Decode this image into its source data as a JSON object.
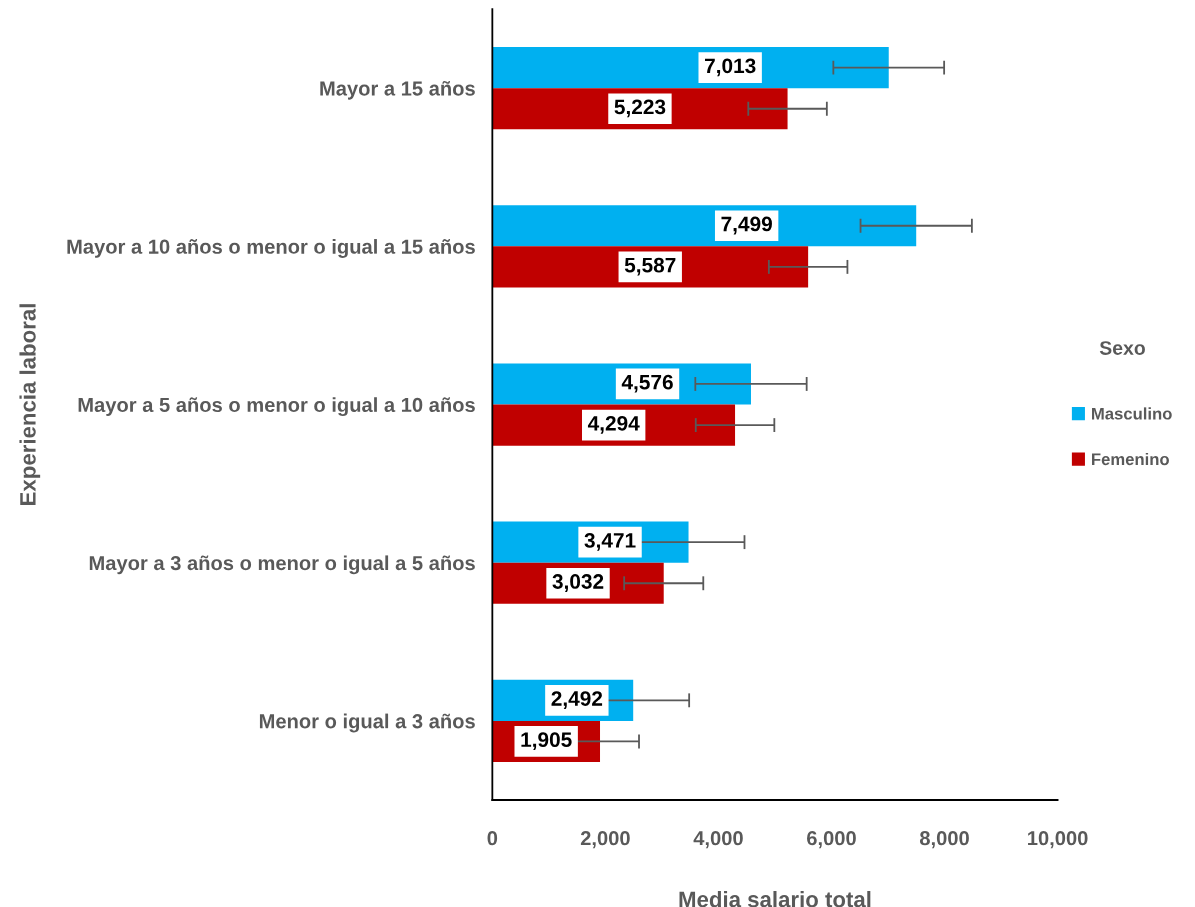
{
  "chart_data": {
    "type": "bar",
    "orientation": "horizontal",
    "xlabel": "Media salario total",
    "ylabel": "Experiencia laboral",
    "legend_title": "Sexo",
    "legend": "right",
    "grid": false,
    "categories": [
      "Mayor a 15 años",
      "Mayor a 10 años o menor o igual a 15 años",
      "Mayor a 5 años o menor o igual a 10 años",
      "Mayor a 3 años o menor o igual a 5 años",
      "Menor o igual a 3 años"
    ],
    "xlim": [
      0,
      10000
    ],
    "xticks": [
      {
        "value": 0,
        "label": "0"
      },
      {
        "value": 2000,
        "label": "2,000"
      },
      {
        "value": 4000,
        "label": "4,000"
      },
      {
        "value": 6000,
        "label": "6,000"
      },
      {
        "value": 8000,
        "label": "8,000"
      },
      {
        "value": 10000,
        "label": "10,000"
      }
    ],
    "series": [
      {
        "name": "Masculino",
        "color": "#00b0f0",
        "values": [
          7013,
          7499,
          4576,
          3471,
          2492
        ],
        "value_labels": [
          "7,013",
          "7,499",
          "4,576",
          "3,471",
          "2,492"
        ],
        "errors": [
          980,
          985,
          985,
          990,
          990
        ]
      },
      {
        "name": "Femenino",
        "color": "#c00000",
        "values": [
          5223,
          5587,
          4294,
          3032,
          1905
        ],
        "value_labels": [
          "5,223",
          "5,587",
          "4,294",
          "3,032",
          "1,905"
        ],
        "errors": [
          695,
          695,
          695,
          700,
          690
        ]
      }
    ]
  }
}
